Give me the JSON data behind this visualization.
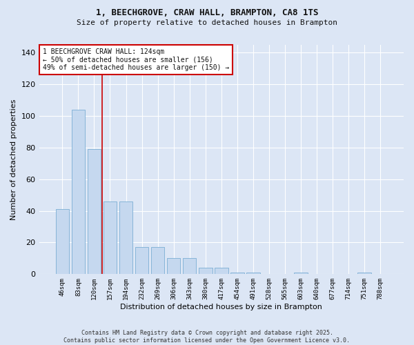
{
  "title_line1": "1, BEECHGROVE, CRAW HALL, BRAMPTON, CA8 1TS",
  "title_line2": "Size of property relative to detached houses in Brampton",
  "xlabel": "Distribution of detached houses by size in Brampton",
  "ylabel": "Number of detached properties",
  "categories": [
    "46sqm",
    "83sqm",
    "120sqm",
    "157sqm",
    "194sqm",
    "232sqm",
    "269sqm",
    "306sqm",
    "343sqm",
    "380sqm",
    "417sqm",
    "454sqm",
    "491sqm",
    "528sqm",
    "565sqm",
    "603sqm",
    "640sqm",
    "677sqm",
    "714sqm",
    "751sqm",
    "788sqm"
  ],
  "values": [
    41,
    104,
    79,
    46,
    46,
    17,
    17,
    10,
    10,
    4,
    4,
    1,
    1,
    0,
    0,
    1,
    0,
    0,
    0,
    1,
    0
  ],
  "bar_color": "#c5d8ef",
  "bar_edge_color": "#7aadd4",
  "bg_color": "#dce6f5",
  "fig_color": "#dce6f5",
  "grid_color": "#ffffff",
  "vline_x": 2.5,
  "vline_color": "#cc0000",
  "annotation_text": "1 BEECHGROVE CRAW HALL: 124sqm\n← 50% of detached houses are smaller (156)\n49% of semi-detached houses are larger (150) →",
  "ylim": [
    0,
    145
  ],
  "yticks": [
    0,
    20,
    40,
    60,
    80,
    100,
    120,
    140
  ],
  "footer_line1": "Contains HM Land Registry data © Crown copyright and database right 2025.",
  "footer_line2": "Contains public sector information licensed under the Open Government Licence v3.0."
}
